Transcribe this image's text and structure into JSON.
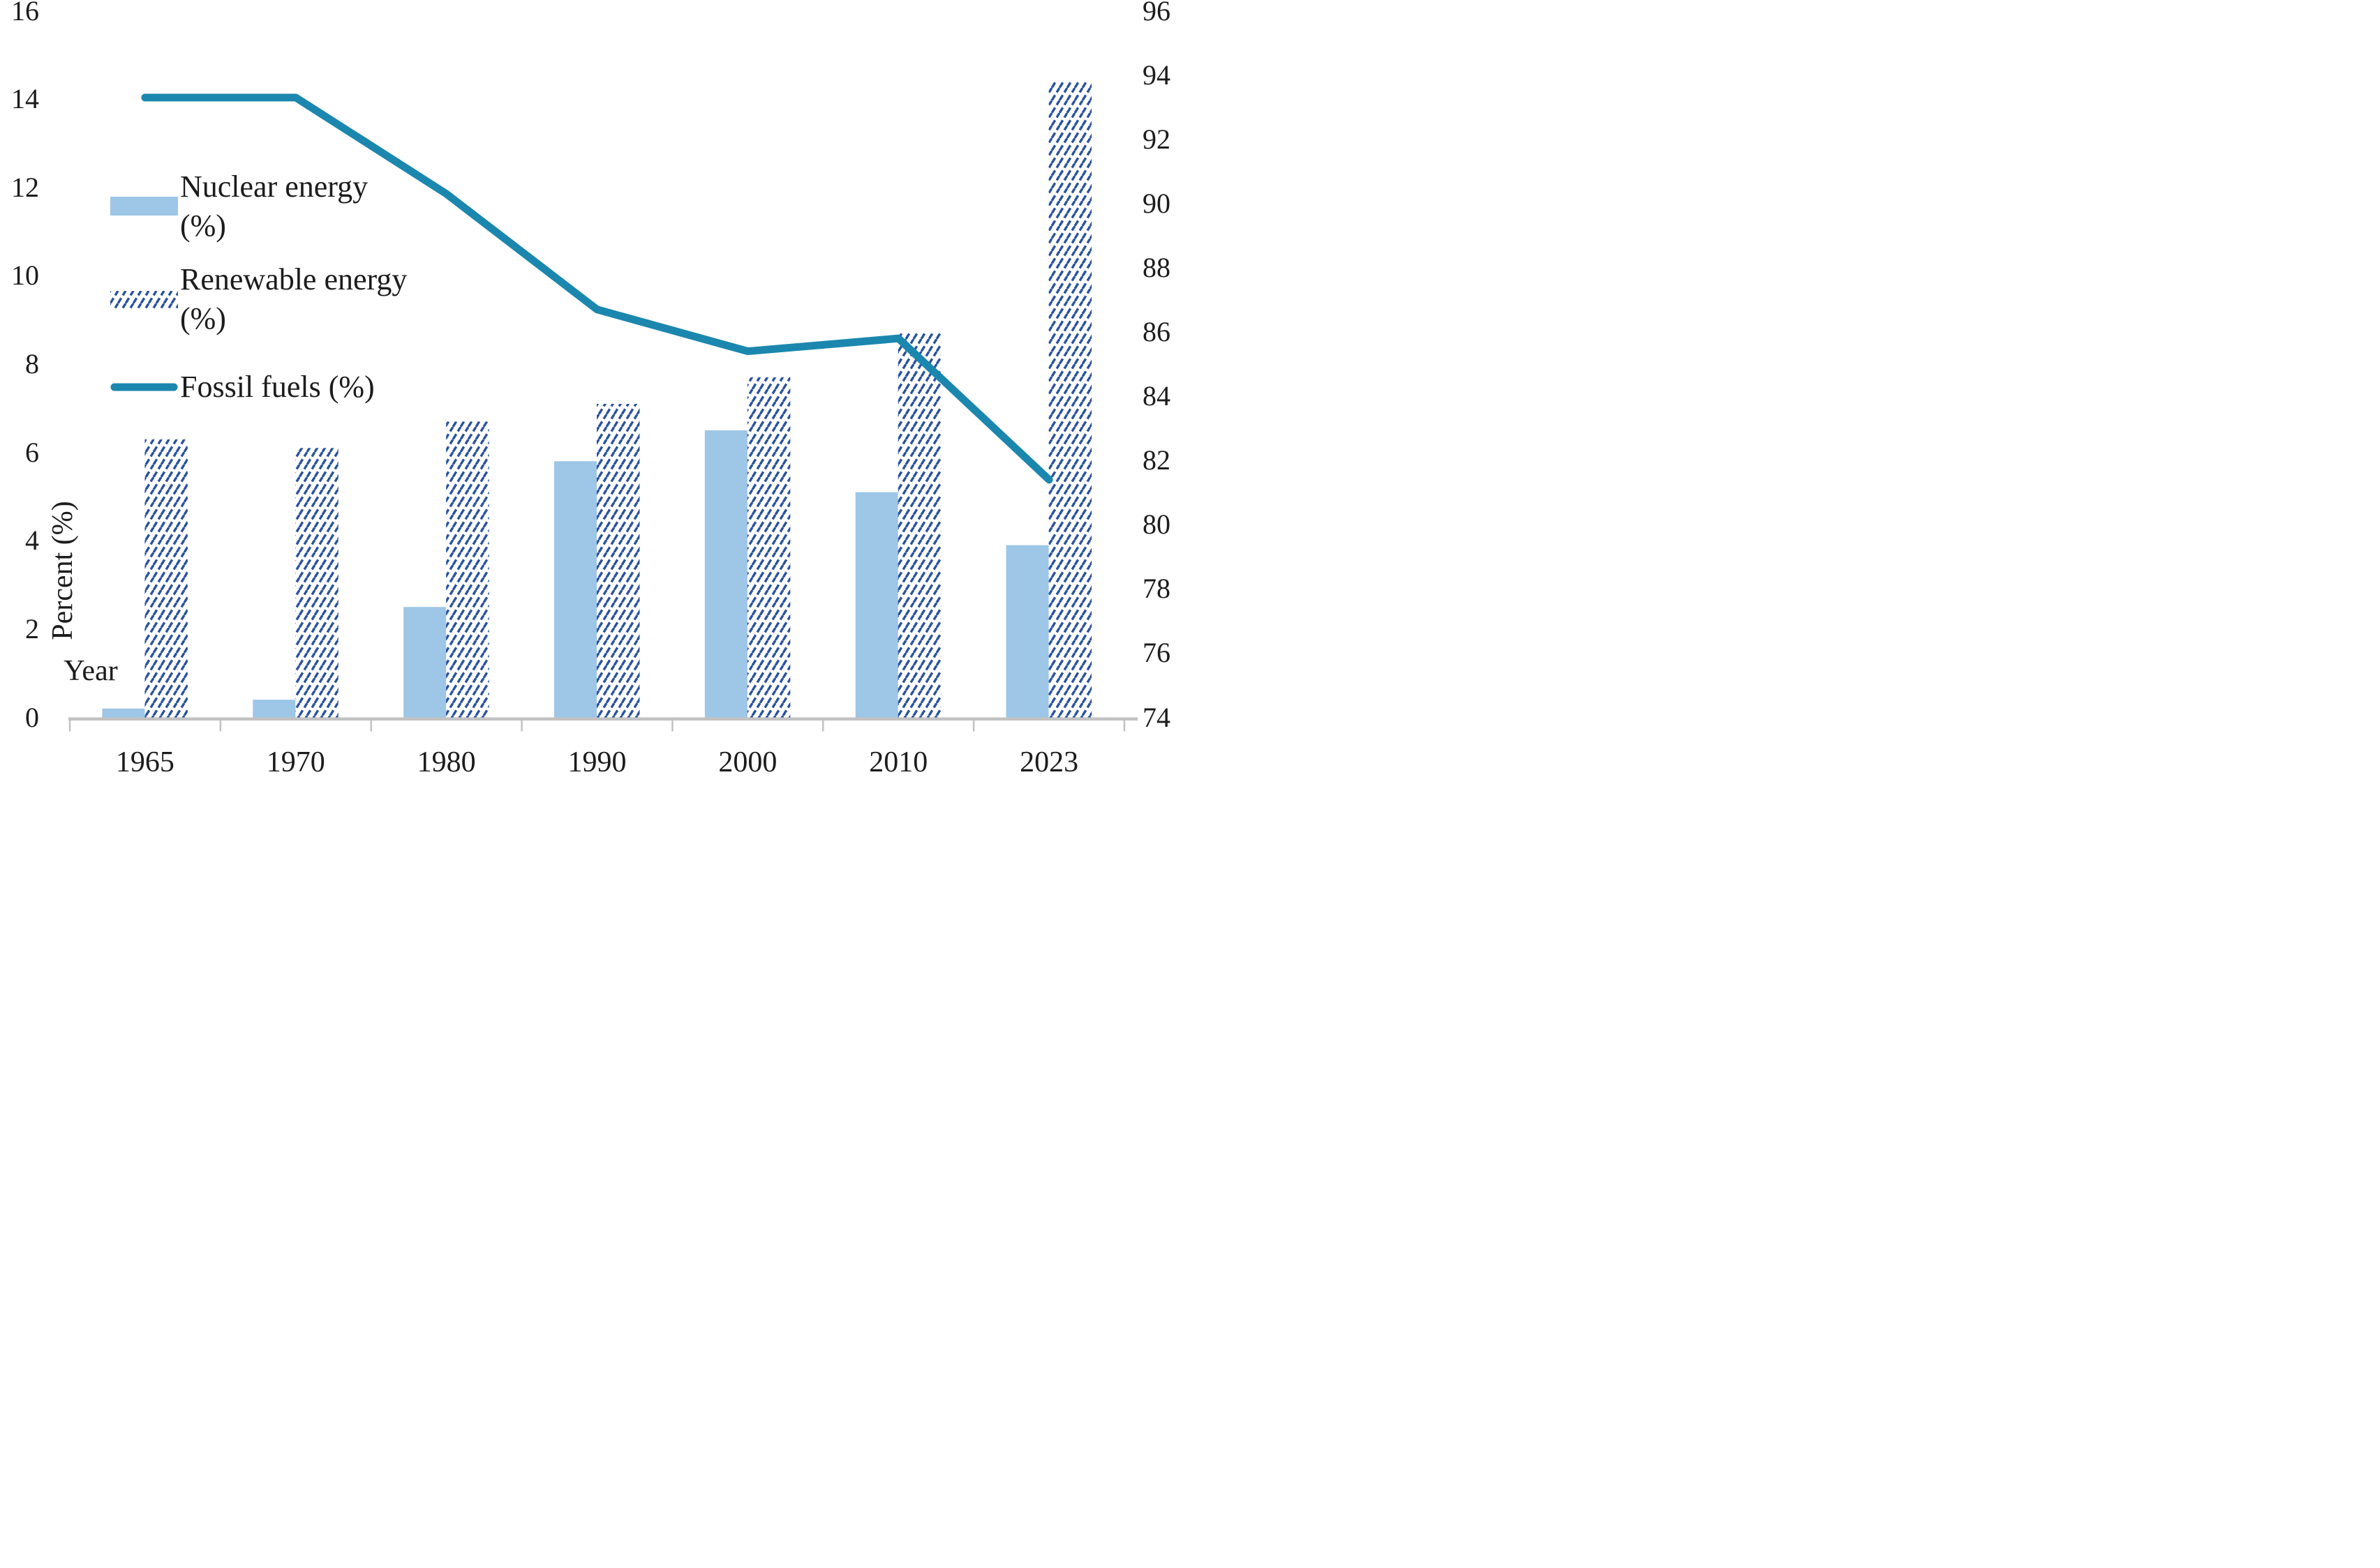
{
  "chart_data": {
    "type": "bar",
    "subtype": "combo-bar-line-dual-axis",
    "title": "",
    "categories": [
      "1965",
      "1970",
      "1980",
      "1990",
      "2000",
      "2010",
      "2023"
    ],
    "series": [
      {
        "name": "Nuclear energy (%)",
        "type": "bar",
        "axis": "left",
        "style": "solid",
        "color": "#9dc6e7",
        "values": [
          0.2,
          0.4,
          2.5,
          5.8,
          6.5,
          5.1,
          3.9
        ]
      },
      {
        "name": "Renewable energy (%)",
        "type": "bar",
        "axis": "left",
        "style": "diagonal-hatch",
        "color": "#2a529e",
        "values": [
          6.3,
          6.1,
          6.7,
          7.1,
          7.7,
          8.7,
          14.4
        ]
      },
      {
        "name": "Fossil fuels (%)",
        "type": "line",
        "axis": "right",
        "style": "solid-round-cap",
        "color": "#1b87ae",
        "values": [
          93.3,
          93.3,
          90.3,
          86.7,
          85.4,
          85.8,
          81.4
        ]
      }
    ],
    "left_axis": {
      "label": "Percent (%)",
      "min": 0,
      "max": 16,
      "step": 2
    },
    "right_axis": {
      "label": "",
      "min": 74,
      "max": 96,
      "step": 2
    },
    "x_axis": {
      "label": "Year"
    },
    "legend_position": "inside-top-left",
    "grid": false,
    "axis_color": "#c2c2c2",
    "text_color": "#1c1c1c",
    "background": "#ffffff"
  }
}
